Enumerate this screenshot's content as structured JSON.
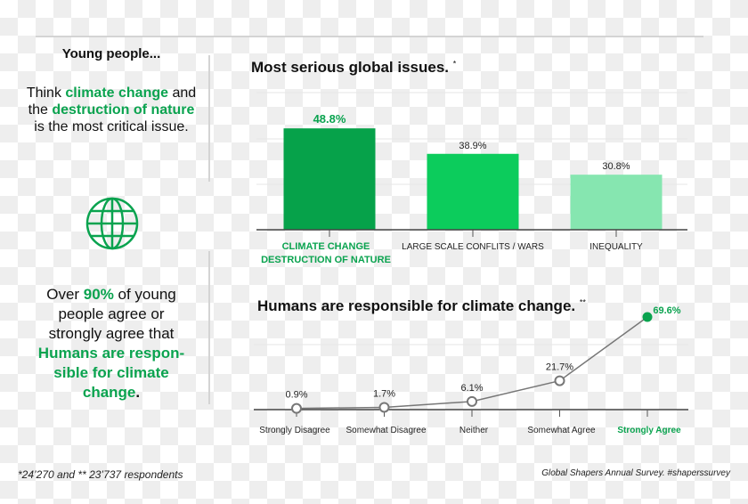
{
  "left_panel": {
    "heading": "Young people...",
    "p1": [
      "Think ",
      "climate change",
      " and",
      "the ",
      "destruction of nature",
      "is the most critical issue."
    ],
    "icon": "globe-icon",
    "p2": [
      "Over ",
      "90%",
      " of young",
      "people agree or",
      "strongly agree that",
      "Humans are respon-",
      "sible for climate",
      "change",
      "."
    ]
  },
  "colors": {
    "accent": "#0aa34f",
    "bar1": "#06a24a",
    "bar2": "#0ccc5c",
    "bar3": "#86e6b0",
    "line": "#777777"
  },
  "chart_data": [
    {
      "type": "bar",
      "title": "Most serious global issues.",
      "title_mark": "*",
      "categories": [
        [
          "CLIMATE CHANGE",
          "DESTRUCTION OF NATURE"
        ],
        [
          "LARGE SCALE CONFLITS / WARS"
        ],
        [
          "INEQUALITY"
        ]
      ],
      "values": [
        48.8,
        38.9,
        30.8
      ],
      "labels": [
        "48.8%",
        "38.9%",
        "30.8%"
      ],
      "ylim": [
        9.4,
        62.7
      ],
      "grid": true
    },
    {
      "type": "line",
      "title": "Humans are responsible for climate change.",
      "title_mark": "**",
      "categories": [
        "Strongly Disagree",
        "Somewhat Disagree",
        "Neither",
        "Somewhat Agree",
        "Strongly Agree"
      ],
      "values": [
        0.9,
        1.7,
        6.1,
        21.7,
        69.6
      ],
      "labels": [
        "0.9%",
        "1.7%",
        "6.1%",
        "21.7%",
        "69.6%"
      ],
      "ylim": [
        0,
        70
      ],
      "highlight_index": 4,
      "grid": true
    }
  ],
  "footer": {
    "respondents": "*24’270 and  ** 23’737 respondents",
    "source": "Global Shapers Annual Survey.  #shaperssurvey"
  }
}
